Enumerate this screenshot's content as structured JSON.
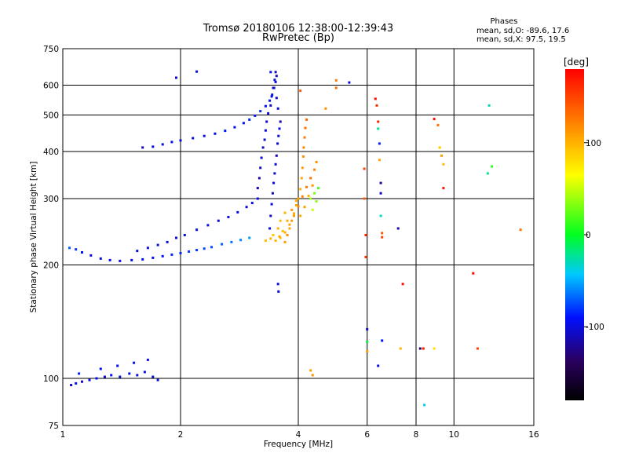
{
  "chart_data": {
    "type": "scatter",
    "title": "Tromsø 20180106 12:38:00-12:39:43",
    "subtitle": "RwPretec (Bp)",
    "xlabel": "Frequency [MHz]",
    "ylabel": "Stationary phase Virtual Height [km]",
    "xscale": "log",
    "yscale": "log",
    "xlim": [
      1,
      16
    ],
    "ylim": [
      75,
      750
    ],
    "grid": true,
    "x_ticks": [
      1,
      2,
      4,
      6,
      8,
      10,
      16
    ],
    "x_tick_labels": [
      "1",
      "2",
      "4",
      "6",
      "8",
      "10",
      "16"
    ],
    "y_ticks": [
      75,
      100,
      200,
      300,
      400,
      500,
      600,
      750
    ],
    "y_tick_labels": [
      "75",
      "100",
      "200",
      "300",
      "400",
      "500",
      "600",
      "750"
    ],
    "stats_header": "Phases",
    "stats_lines": [
      "mean, sd,O:  -89.6, 17.6",
      "mean, sd,X:  97.5, 19.5"
    ],
    "colorbar": {
      "label": "[deg]",
      "range": [
        -180,
        180
      ],
      "ticks": [
        -100,
        0,
        100
      ],
      "tick_labels": [
        "-100",
        "0",
        "100"
      ]
    },
    "series": [
      {
        "comment_free": true,
        "points": [
          [
            1.05,
            96,
            -100
          ],
          [
            1.08,
            97,
            -95
          ],
          [
            1.12,
            98,
            -105
          ],
          [
            1.17,
            99,
            -100
          ],
          [
            1.22,
            100,
            -95
          ],
          [
            1.28,
            101,
            -100
          ],
          [
            1.33,
            102,
            -90
          ],
          [
            1.4,
            101,
            -100
          ],
          [
            1.48,
            103,
            -95
          ],
          [
            1.55,
            102,
            -100
          ],
          [
            1.62,
            104,
            -92
          ],
          [
            1.7,
            101,
            -100
          ],
          [
            1.1,
            103,
            -85
          ],
          [
            1.25,
            106,
            -90
          ],
          [
            1.38,
            108,
            -95
          ],
          [
            1.52,
            110,
            -100
          ],
          [
            1.65,
            112,
            -95
          ],
          [
            1.75,
            99,
            -100
          ],
          [
            1.04,
            222,
            -70
          ],
          [
            1.08,
            220,
            -80
          ],
          [
            1.12,
            216,
            -90
          ],
          [
            1.18,
            212,
            -100
          ],
          [
            1.25,
            208,
            -100
          ],
          [
            1.32,
            206,
            -95
          ],
          [
            1.4,
            205,
            -100
          ],
          [
            1.5,
            206,
            -95
          ],
          [
            1.6,
            207,
            -90
          ],
          [
            1.7,
            209,
            -95
          ],
          [
            1.8,
            211,
            -90
          ],
          [
            1.9,
            213,
            -85
          ],
          [
            2.0,
            215,
            -85
          ],
          [
            2.1,
            217,
            -80
          ],
          [
            2.2,
            219,
            -80
          ],
          [
            2.3,
            221,
            -75
          ],
          [
            2.4,
            223,
            -75
          ],
          [
            2.55,
            227,
            -70
          ],
          [
            2.7,
            230,
            -65
          ],
          [
            2.85,
            233,
            -60
          ],
          [
            3.0,
            236,
            -55
          ],
          [
            1.55,
            218,
            -100
          ],
          [
            1.65,
            222,
            -100
          ],
          [
            1.75,
            226,
            -100
          ],
          [
            1.85,
            230,
            -100
          ],
          [
            1.95,
            236,
            -100
          ],
          [
            2.05,
            240,
            -100
          ],
          [
            2.2,
            248,
            -100
          ],
          [
            2.35,
            255,
            -100
          ],
          [
            2.5,
            262,
            -100
          ],
          [
            2.65,
            268,
            -100
          ],
          [
            2.8,
            276,
            -100
          ],
          [
            2.95,
            285,
            -100
          ],
          [
            3.05,
            292,
            -100
          ],
          [
            3.15,
            300,
            -100
          ],
          [
            1.6,
            410,
            -110
          ],
          [
            1.7,
            412,
            -100
          ],
          [
            1.8,
            418,
            -100
          ],
          [
            1.9,
            424,
            -95
          ],
          [
            2.0,
            428,
            -100
          ],
          [
            2.15,
            434,
            -95
          ],
          [
            2.3,
            440,
            -100
          ],
          [
            2.45,
            446,
            -95
          ],
          [
            2.6,
            454,
            -90
          ],
          [
            2.75,
            464,
            -95
          ],
          [
            2.9,
            476,
            -90
          ],
          [
            3.0,
            486,
            -85
          ],
          [
            3.1,
            498,
            -90
          ],
          [
            3.2,
            512,
            -85
          ],
          [
            3.3,
            528,
            -90
          ],
          [
            3.38,
            546,
            -95
          ],
          [
            3.43,
            566,
            -100
          ],
          [
            3.47,
            590,
            -100
          ],
          [
            3.5,
            612,
            -100
          ],
          [
            3.52,
            635,
            -105
          ],
          [
            3.15,
            320,
            -110
          ],
          [
            3.18,
            340,
            -115
          ],
          [
            3.2,
            362,
            -110
          ],
          [
            3.22,
            385,
            -100
          ],
          [
            3.25,
            410,
            -110
          ],
          [
            3.28,
            430,
            -105
          ],
          [
            3.3,
            455,
            -100
          ],
          [
            3.32,
            480,
            -105
          ],
          [
            3.35,
            505,
            -100
          ],
          [
            3.4,
            530,
            -110
          ],
          [
            3.42,
            560,
            -100
          ],
          [
            3.45,
            590,
            -105
          ],
          [
            3.48,
            620,
            -100
          ],
          [
            3.5,
            650,
            -110
          ],
          [
            3.38,
            250,
            -100
          ],
          [
            3.4,
            270,
            -105
          ],
          [
            3.42,
            290,
            -100
          ],
          [
            3.44,
            310,
            -110
          ],
          [
            3.46,
            330,
            -100
          ],
          [
            3.48,
            350,
            -105
          ],
          [
            3.5,
            370,
            -100
          ],
          [
            3.52,
            390,
            -110
          ],
          [
            3.54,
            420,
            -100
          ],
          [
            3.56,
            440,
            -105
          ],
          [
            3.58,
            460,
            -100
          ],
          [
            3.6,
            480,
            -110
          ],
          [
            3.55,
            520,
            -100
          ],
          [
            3.52,
            555,
            -105
          ],
          [
            2.2,
            652,
            -100
          ],
          [
            1.95,
            628,
            -100
          ],
          [
            3.4,
            650,
            -95
          ],
          [
            3.55,
            178,
            -100
          ],
          [
            3.56,
            170,
            -105
          ],
          [
            3.7,
            230,
            110
          ],
          [
            3.75,
            240,
            115
          ],
          [
            3.8,
            250,
            105
          ],
          [
            3.85,
            262,
            110
          ],
          [
            3.9,
            274,
            100
          ],
          [
            3.95,
            288,
            105
          ],
          [
            4.0,
            300,
            110
          ],
          [
            4.05,
            318,
            100
          ],
          [
            4.08,
            340,
            105
          ],
          [
            4.1,
            362,
            110
          ],
          [
            4.12,
            388,
            115
          ],
          [
            4.13,
            410,
            120
          ],
          [
            4.15,
            436,
            125
          ],
          [
            4.17,
            462,
            130
          ],
          [
            4.2,
            486,
            135
          ],
          [
            3.6,
            236,
            95
          ],
          [
            3.7,
            244,
            100
          ],
          [
            3.8,
            256,
            105
          ],
          [
            3.9,
            270,
            110
          ],
          [
            4.0,
            286,
            115
          ],
          [
            4.1,
            304,
            120
          ],
          [
            4.2,
            322,
            125
          ],
          [
            4.3,
            340,
            130
          ],
          [
            4.4,
            358,
            120
          ],
          [
            4.45,
            375,
            115
          ],
          [
            3.5,
            232,
            100
          ],
          [
            3.58,
            238,
            105
          ],
          [
            3.65,
            246,
            95
          ],
          [
            3.75,
            262,
            100
          ],
          [
            3.85,
            280,
            110
          ],
          [
            3.95,
            296,
            100
          ],
          [
            4.05,
            270,
            105
          ],
          [
            4.15,
            285,
            110
          ],
          [
            4.25,
            305,
            100
          ],
          [
            4.35,
            325,
            110
          ],
          [
            3.3,
            232,
            95
          ],
          [
            3.4,
            235,
            100
          ],
          [
            3.45,
            240,
            90
          ],
          [
            3.55,
            250,
            100
          ],
          [
            3.6,
            262,
            95
          ],
          [
            3.7,
            275,
            100
          ],
          [
            4.3,
            300,
            40
          ],
          [
            4.4,
            310,
            30
          ],
          [
            4.35,
            280,
            50
          ],
          [
            4.5,
            320,
            20
          ],
          [
            4.45,
            295,
            35
          ],
          [
            5.0,
            618,
            125
          ],
          [
            5.0,
            590,
            130
          ],
          [
            5.4,
            610,
            -100
          ],
          [
            4.3,
            105,
            110
          ],
          [
            4.35,
            102,
            115
          ],
          [
            4.05,
            580,
            140
          ],
          [
            4.7,
            520,
            115
          ],
          [
            5.9,
            360,
            150
          ],
          [
            5.9,
            300,
            140
          ],
          [
            5.95,
            240,
            160
          ],
          [
            5.95,
            210,
            155
          ],
          [
            6.0,
            135,
            -110
          ],
          [
            6.0,
            125,
            -5
          ],
          [
            6.0,
            118,
            110
          ],
          [
            6.3,
            552,
            175
          ],
          [
            6.35,
            530,
            160
          ],
          [
            6.4,
            480,
            165
          ],
          [
            6.4,
            460,
            -20
          ],
          [
            6.45,
            420,
            -85
          ],
          [
            6.45,
            380,
            105
          ],
          [
            6.5,
            330,
            -120
          ],
          [
            6.5,
            310,
            -110
          ],
          [
            6.5,
            270,
            -30
          ],
          [
            6.55,
            243,
            140
          ],
          [
            6.55,
            237,
            150
          ],
          [
            6.4,
            108,
            -100
          ],
          [
            6.55,
            126,
            -90
          ],
          [
            7.2,
            250,
            -110
          ],
          [
            7.4,
            178,
            175
          ],
          [
            7.3,
            120,
            100
          ],
          [
            8.2,
            120,
            -140
          ],
          [
            8.35,
            120,
            170
          ],
          [
            8.4,
            85,
            -40
          ],
          [
            8.9,
            120,
            80
          ],
          [
            8.9,
            488,
            175
          ],
          [
            9.2,
            410,
            90
          ],
          [
            9.3,
            390,
            110
          ],
          [
            9.4,
            370,
            95
          ],
          [
            9.4,
            320,
            170
          ],
          [
            11.2,
            190,
            175
          ],
          [
            11.5,
            120,
            150
          ],
          [
            12.3,
            530,
            -30
          ],
          [
            12.2,
            350,
            -20
          ],
          [
            14.8,
            248,
            130
          ],
          [
            12.5,
            365,
            10
          ],
          [
            9.1,
            470,
            130
          ]
        ]
      }
    ]
  }
}
